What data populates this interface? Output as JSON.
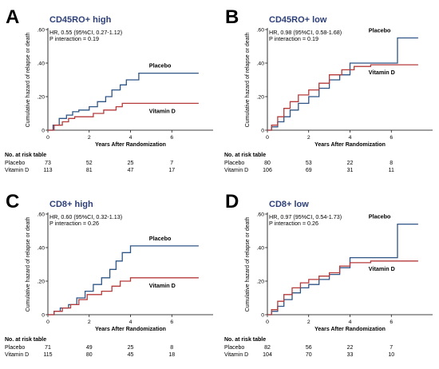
{
  "figure": {
    "risk_table_heading": "No. at risk table",
    "x_axis_label": "Years After Randomization",
    "y_axis_label": "Cumulative hazard of relapse or death"
  },
  "colors": {
    "placebo": "#2f5586",
    "vitamin_d": "#b53a3a",
    "title": "#2d3f77"
  },
  "chart_data": [
    {
      "letter": "A",
      "title": "CD45RO+ high",
      "hr_text": "HR, 0.55 (95%CI, 0.27-1.12)",
      "p_text": "P interaction = 0.19",
      "type": "line",
      "xlim": [
        0,
        8
      ],
      "ylim": [
        0,
        0.6
      ],
      "xticks": [
        0,
        2,
        4,
        6
      ],
      "yticks": [
        0,
        0.2,
        0.4,
        0.6
      ],
      "ytick_labels": [
        "0",
        ".20",
        ".40",
        ".60"
      ],
      "series": [
        {
          "name": "Placebo",
          "color": "#2f5586",
          "points": [
            [
              0,
              0
            ],
            [
              0.25,
              0.03
            ],
            [
              0.55,
              0.07
            ],
            [
              0.9,
              0.09
            ],
            [
              1.2,
              0.11
            ],
            [
              1.5,
              0.12
            ],
            [
              2.0,
              0.14
            ],
            [
              2.4,
              0.17
            ],
            [
              2.8,
              0.2
            ],
            [
              3.1,
              0.24
            ],
            [
              3.5,
              0.27
            ],
            [
              3.8,
              0.3
            ],
            [
              4.4,
              0.34
            ],
            [
              7.3,
              0.34
            ]
          ]
        },
        {
          "name": "Vitamin D",
          "color": "#b53a3a",
          "points": [
            [
              0,
              0
            ],
            [
              0.3,
              0.03
            ],
            [
              0.7,
              0.05
            ],
            [
              1.0,
              0.07
            ],
            [
              1.3,
              0.08
            ],
            [
              2.2,
              0.1
            ],
            [
              2.7,
              0.12
            ],
            [
              3.3,
              0.14
            ],
            [
              3.6,
              0.16
            ],
            [
              7.3,
              0.16
            ]
          ]
        }
      ],
      "risk_table": [
        {
          "group": "Placebo",
          "values": [
            "73",
            "52",
            "25",
            "7"
          ]
        },
        {
          "group": "Vitamin D",
          "values": [
            "113",
            "81",
            "47",
            "17"
          ]
        }
      ]
    },
    {
      "letter": "B",
      "title": "CD45RO+ low",
      "hr_text": "HR, 0.98 (95%CI, 0.58-1.68)",
      "p_text": "P interaction = 0.19",
      "type": "line",
      "xlim": [
        0,
        8
      ],
      "ylim": [
        0,
        0.6
      ],
      "xticks": [
        0,
        2,
        4,
        6
      ],
      "yticks": [
        0,
        0.2,
        0.4,
        0.6
      ],
      "ytick_labels": [
        "0",
        ".20",
        ".40",
        ".60"
      ],
      "series": [
        {
          "name": "Placebo",
          "color": "#2f5586",
          "points": [
            [
              0,
              0
            ],
            [
              0.2,
              0.02
            ],
            [
              0.5,
              0.05
            ],
            [
              0.8,
              0.08
            ],
            [
              1.1,
              0.12
            ],
            [
              1.5,
              0.16
            ],
            [
              2.0,
              0.2
            ],
            [
              2.5,
              0.25
            ],
            [
              3.0,
              0.3
            ],
            [
              3.5,
              0.33
            ],
            [
              4.0,
              0.4
            ],
            [
              6.2,
              0.4
            ],
            [
              6.3,
              0.55
            ],
            [
              7.3,
              0.55
            ]
          ]
        },
        {
          "name": "Vitamin D",
          "color": "#b53a3a",
          "points": [
            [
              0,
              0
            ],
            [
              0.2,
              0.03
            ],
            [
              0.5,
              0.08
            ],
            [
              0.8,
              0.13
            ],
            [
              1.1,
              0.17
            ],
            [
              1.5,
              0.21
            ],
            [
              2.0,
              0.24
            ],
            [
              2.5,
              0.28
            ],
            [
              3.0,
              0.33
            ],
            [
              3.6,
              0.36
            ],
            [
              4.2,
              0.38
            ],
            [
              5.0,
              0.39
            ],
            [
              7.3,
              0.39
            ]
          ]
        }
      ],
      "risk_table": [
        {
          "group": "Placebo",
          "values": [
            "80",
            "53",
            "22",
            "8"
          ]
        },
        {
          "group": "Vitamin D",
          "values": [
            "106",
            "69",
            "31",
            "11"
          ]
        }
      ]
    },
    {
      "letter": "C",
      "title": "CD8+ high",
      "hr_text": "HR, 0.60 (95%CI, 0.32-1.13)",
      "p_text": "P interaction = 0.26",
      "type": "line",
      "xlim": [
        0,
        8
      ],
      "ylim": [
        0,
        0.6
      ],
      "xticks": [
        0,
        2,
        4,
        6
      ],
      "yticks": [
        0,
        0.2,
        0.4,
        0.6
      ],
      "ytick_labels": [
        "0",
        ".20",
        ".40",
        ".60"
      ],
      "series": [
        {
          "name": "Placebo",
          "color": "#2f5586",
          "points": [
            [
              0,
              0
            ],
            [
              0.3,
              0.02
            ],
            [
              0.6,
              0.04
            ],
            [
              1.0,
              0.06
            ],
            [
              1.4,
              0.1
            ],
            [
              1.8,
              0.14
            ],
            [
              2.2,
              0.18
            ],
            [
              2.6,
              0.22
            ],
            [
              3.0,
              0.27
            ],
            [
              3.3,
              0.32
            ],
            [
              3.6,
              0.37
            ],
            [
              4.0,
              0.41
            ],
            [
              7.3,
              0.41
            ]
          ]
        },
        {
          "name": "Vitamin D",
          "color": "#b53a3a",
          "points": [
            [
              0,
              0
            ],
            [
              0.3,
              0.02
            ],
            [
              0.7,
              0.04
            ],
            [
              1.1,
              0.06
            ],
            [
              1.5,
              0.09
            ],
            [
              1.9,
              0.12
            ],
            [
              2.6,
              0.14
            ],
            [
              3.1,
              0.17
            ],
            [
              3.5,
              0.2
            ],
            [
              4.0,
              0.22
            ],
            [
              7.3,
              0.22
            ]
          ]
        }
      ],
      "risk_table": [
        {
          "group": "Placebo",
          "values": [
            "71",
            "49",
            "25",
            "8"
          ]
        },
        {
          "group": "Vitamin D",
          "values": [
            "115",
            "80",
            "45",
            "18"
          ]
        }
      ]
    },
    {
      "letter": "D",
      "title": "CD8+ low",
      "hr_text": "HR, 0.97 (95%CI, 0.54-1.73)",
      "p_text": "P interaction = 0.26",
      "type": "line",
      "xlim": [
        0,
        8
      ],
      "ylim": [
        0,
        0.6
      ],
      "xticks": [
        0,
        2,
        4,
        6
      ],
      "yticks": [
        0,
        0.2,
        0.4,
        0.6
      ],
      "ytick_labels": [
        "0",
        ".20",
        ".40",
        ".60"
      ],
      "series": [
        {
          "name": "Placebo",
          "color": "#2f5586",
          "points": [
            [
              0,
              0
            ],
            [
              0.2,
              0.02
            ],
            [
              0.5,
              0.05
            ],
            [
              0.8,
              0.09
            ],
            [
              1.2,
              0.13
            ],
            [
              1.6,
              0.16
            ],
            [
              2.0,
              0.18
            ],
            [
              2.5,
              0.21
            ],
            [
              3.0,
              0.24
            ],
            [
              3.5,
              0.28
            ],
            [
              4.0,
              0.34
            ],
            [
              6.2,
              0.34
            ],
            [
              6.3,
              0.54
            ],
            [
              7.3,
              0.54
            ]
          ]
        },
        {
          "name": "Vitamin D",
          "color": "#b53a3a",
          "points": [
            [
              0,
              0
            ],
            [
              0.2,
              0.03
            ],
            [
              0.5,
              0.08
            ],
            [
              0.8,
              0.12
            ],
            [
              1.2,
              0.16
            ],
            [
              1.6,
              0.19
            ],
            [
              2.0,
              0.21
            ],
            [
              2.5,
              0.23
            ],
            [
              3.0,
              0.25
            ],
            [
              3.5,
              0.29
            ],
            [
              4.0,
              0.31
            ],
            [
              5.0,
              0.32
            ],
            [
              7.3,
              0.32
            ]
          ]
        }
      ],
      "risk_table": [
        {
          "group": "Placebo",
          "values": [
            "82",
            "56",
            "22",
            "7"
          ]
        },
        {
          "group": "Vitamin D",
          "values": [
            "104",
            "70",
            "33",
            "10"
          ]
        }
      ]
    }
  ]
}
